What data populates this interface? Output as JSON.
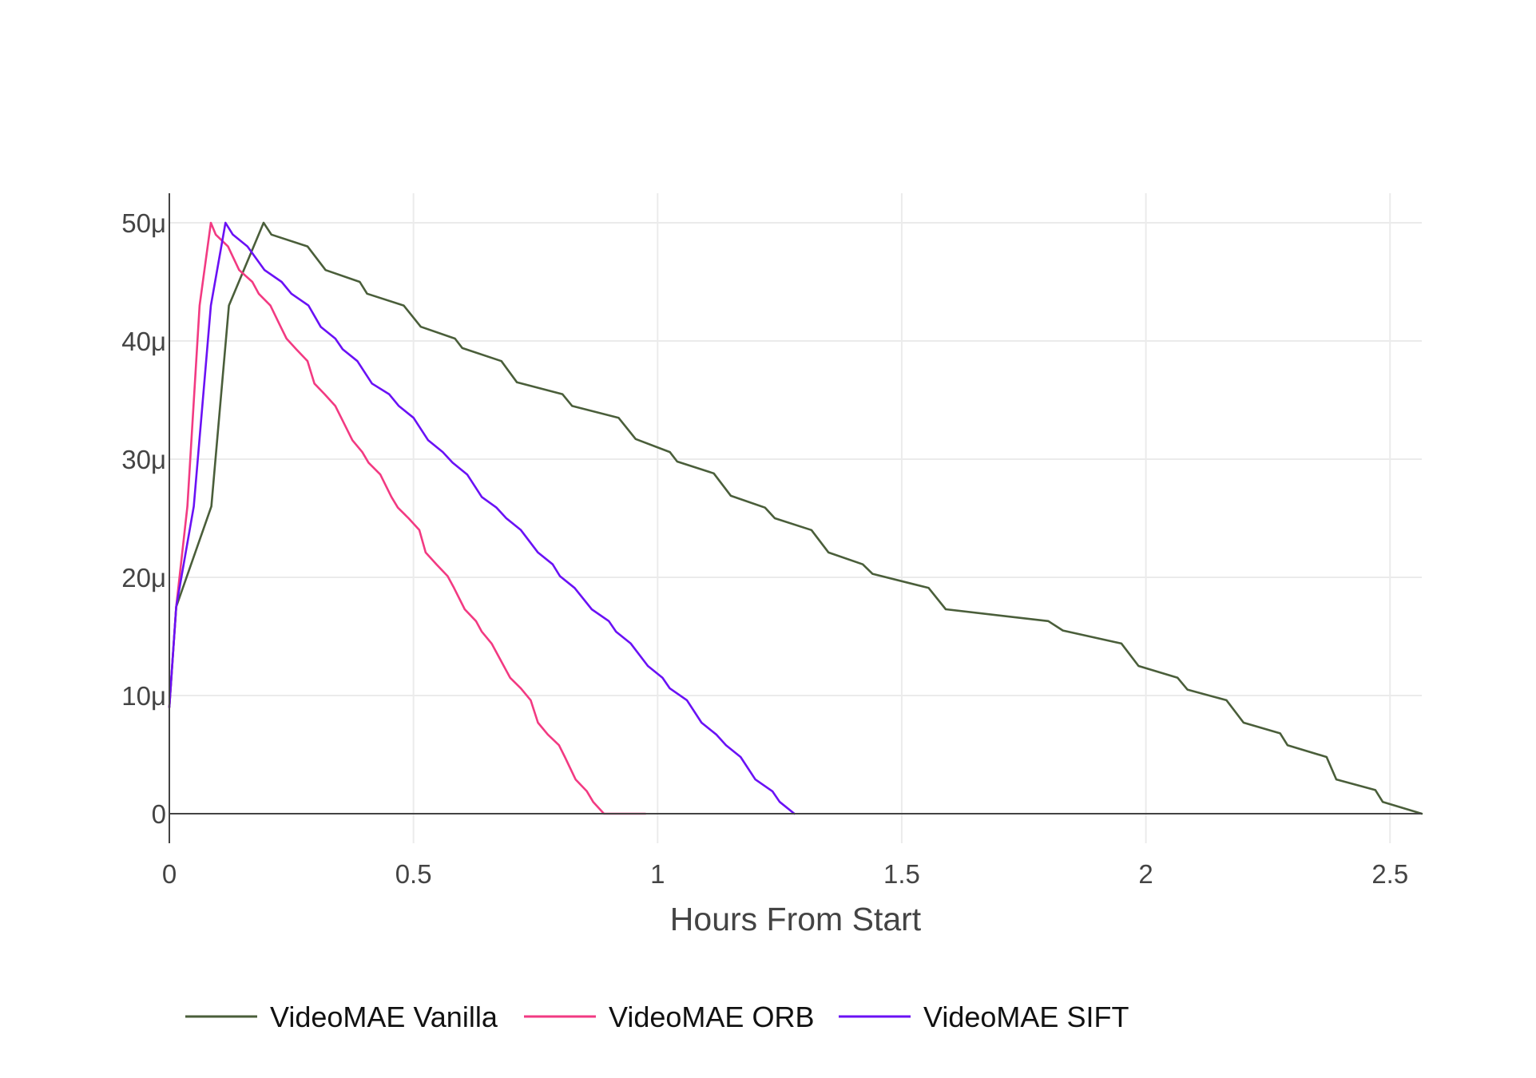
{
  "chart_data": {
    "type": "line",
    "title": "",
    "xlabel": "Hours From Start",
    "ylabel": "",
    "xlim": [
      0,
      2.565
    ],
    "ylim": [
      -2.5,
      52.5
    ],
    "x_ticks": [
      0,
      0.5,
      1,
      1.5,
      2,
      2.5
    ],
    "x_tick_labels": [
      "0",
      "0.5",
      "1",
      "1.5",
      "2",
      "2.5"
    ],
    "y_ticks": [
      0,
      10,
      20,
      30,
      40,
      50
    ],
    "y_tick_labels": [
      "0",
      "10μ",
      "20μ",
      "30μ",
      "40μ",
      "50μ"
    ],
    "y_unit_note": "values in μ (1e-6)",
    "grid": true,
    "legend_position": "bottom",
    "series": [
      {
        "name": "VideoMAE Vanilla",
        "color": "#4a5e3a",
        "x": [
          0.0,
          0.014,
          0.086,
          0.122,
          0.193,
          0.209,
          0.283,
          0.32,
          0.39,
          0.405,
          0.48,
          0.515,
          0.585,
          0.6,
          0.68,
          0.712,
          0.805,
          0.825,
          0.92,
          0.955,
          1.025,
          1.04,
          1.115,
          1.15,
          1.22,
          1.24,
          1.315,
          1.35,
          1.42,
          1.44,
          1.555,
          1.59,
          1.8,
          1.83,
          1.95,
          1.985,
          2.065,
          2.085,
          2.165,
          2.2,
          2.275,
          2.29,
          2.37,
          2.39,
          2.47,
          2.485,
          2.565
        ],
        "values": [
          9,
          17.5,
          26,
          43,
          50,
          49,
          48,
          46,
          45,
          44,
          43,
          41.2,
          40.2,
          39.4,
          38.3,
          36.5,
          35.5,
          34.5,
          33.5,
          31.7,
          30.6,
          29.8,
          28.8,
          26.9,
          25.9,
          25,
          24,
          22.1,
          21.1,
          20.3,
          19.1,
          17.3,
          16.3,
          15.5,
          14.4,
          12.5,
          11.5,
          10.5,
          9.6,
          7.7,
          6.8,
          5.8,
          4.8,
          2.9,
          2,
          1,
          0
        ]
      },
      {
        "name": "VideoMAE ORB",
        "color": "#f23a82",
        "x": [
          0.0,
          0.014,
          0.037,
          0.062,
          0.085,
          0.095,
          0.12,
          0.143,
          0.17,
          0.183,
          0.207,
          0.228,
          0.24,
          0.26,
          0.283,
          0.297,
          0.318,
          0.34,
          0.352,
          0.375,
          0.395,
          0.408,
          0.432,
          0.455,
          0.468,
          0.49,
          0.512,
          0.525,
          0.547,
          0.57,
          0.583,
          0.605,
          0.628,
          0.64,
          0.66,
          0.685,
          0.698,
          0.72,
          0.74,
          0.755,
          0.775,
          0.798,
          0.81,
          0.832,
          0.855,
          0.868,
          0.89,
          0.912,
          0.925,
          0.945,
          0.968,
          0.975
        ],
        "values": [
          9,
          17.5,
          26,
          43,
          50,
          49,
          48,
          46,
          45,
          44,
          43,
          41.2,
          40.2,
          39.3,
          38.3,
          36.4,
          35.5,
          34.5,
          33.5,
          31.6,
          30.6,
          29.7,
          28.7,
          26.8,
          25.9,
          25,
          24,
          22.1,
          21.1,
          20.1,
          19.1,
          17.3,
          16.3,
          15.4,
          14.4,
          12.5,
          11.5,
          10.6,
          9.6,
          7.7,
          6.7,
          5.8,
          4.8,
          2.9,
          1.9,
          1,
          0,
          0,
          0,
          0,
          0,
          0
        ]
      },
      {
        "name": "VideoMAE SIFT",
        "color": "#6a11f5",
        "x": [
          0.0,
          0.014,
          0.05,
          0.085,
          0.115,
          0.13,
          0.16,
          0.195,
          0.23,
          0.25,
          0.285,
          0.31,
          0.34,
          0.355,
          0.385,
          0.415,
          0.45,
          0.47,
          0.5,
          0.53,
          0.56,
          0.58,
          0.61,
          0.64,
          0.67,
          0.69,
          0.72,
          0.755,
          0.785,
          0.8,
          0.83,
          0.865,
          0.9,
          0.915,
          0.945,
          0.98,
          1.01,
          1.025,
          1.06,
          1.09,
          1.12,
          1.14,
          1.17,
          1.2,
          1.235,
          1.25,
          1.28
        ],
        "values": [
          9,
          17.5,
          26,
          43,
          50,
          49,
          48,
          46,
          45,
          44,
          43,
          41.2,
          40.2,
          39.3,
          38.3,
          36.4,
          35.5,
          34.5,
          33.5,
          31.6,
          30.6,
          29.7,
          28.7,
          26.8,
          25.9,
          25,
          24,
          22.1,
          21.1,
          20.1,
          19.1,
          17.3,
          16.3,
          15.4,
          14.4,
          12.5,
          11.5,
          10.6,
          9.6,
          7.7,
          6.7,
          5.8,
          4.8,
          2.9,
          1.9,
          1,
          0
        ]
      }
    ]
  }
}
